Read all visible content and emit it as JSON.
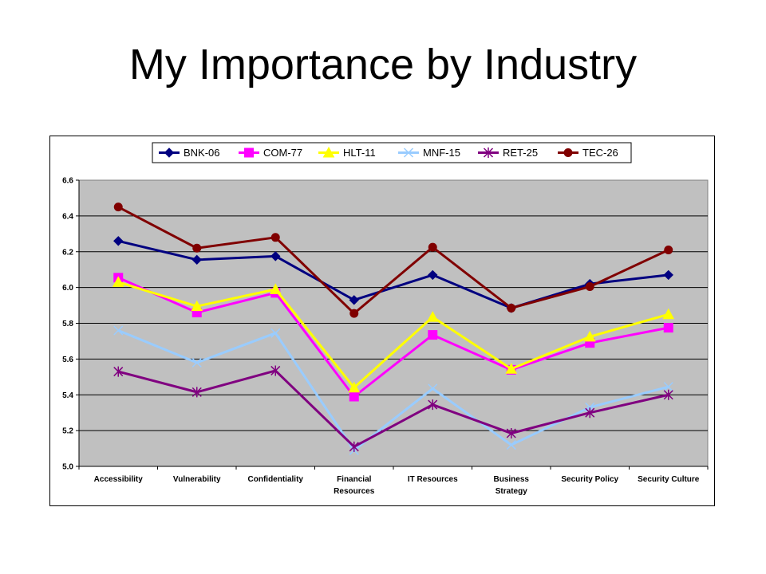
{
  "slide": {
    "title": "My Importance by Industry"
  },
  "chart_data": {
    "type": "line",
    "title": "",
    "xlabel": "",
    "ylabel": "",
    "categories": [
      [
        "Accessibility"
      ],
      [
        "Vulnerability"
      ],
      [
        "Confidentiality"
      ],
      [
        "Financial",
        "Resources"
      ],
      [
        "IT Resources"
      ],
      [
        "Business",
        "Strategy"
      ],
      [
        "Security Policy"
      ],
      [
        "Security Culture"
      ]
    ],
    "ylim": [
      5.0,
      6.6
    ],
    "yticks": [
      "5.0",
      "5.2",
      "5.4",
      "5.6",
      "5.8",
      "6.0",
      "6.2",
      "6.4",
      "6.6"
    ],
    "grid": "horizontal",
    "plot_background": "#c0c0c0",
    "legend_position": "top",
    "series": [
      {
        "name": "BNK-06",
        "color": "#000080",
        "marker": "diamond",
        "values": [
          6.26,
          6.155,
          6.175,
          5.93,
          6.07,
          5.885,
          6.02,
          6.07
        ]
      },
      {
        "name": "COM-77",
        "color": "#ff00ff",
        "marker": "square",
        "values": [
          6.055,
          5.86,
          5.97,
          5.39,
          5.735,
          5.54,
          5.69,
          5.775
        ]
      },
      {
        "name": "HLT-11",
        "color": "#ffff00",
        "marker": "triangle",
        "values": [
          6.03,
          5.895,
          5.99,
          5.44,
          5.835,
          5.545,
          5.725,
          5.85
        ]
      },
      {
        "name": "MNF-15",
        "color": "#99ccff",
        "marker": "x",
        "values": [
          5.76,
          5.58,
          5.745,
          5.09,
          5.435,
          5.12,
          5.33,
          5.445
        ]
      },
      {
        "name": "RET-25",
        "color": "#800080",
        "marker": "star",
        "values": [
          5.53,
          5.415,
          5.535,
          5.11,
          5.345,
          5.185,
          5.3,
          5.4
        ]
      },
      {
        "name": "TEC-26",
        "color": "#800000",
        "marker": "circle",
        "values": [
          6.45,
          6.22,
          6.28,
          5.855,
          6.225,
          5.885,
          6.005,
          6.21
        ]
      }
    ]
  }
}
